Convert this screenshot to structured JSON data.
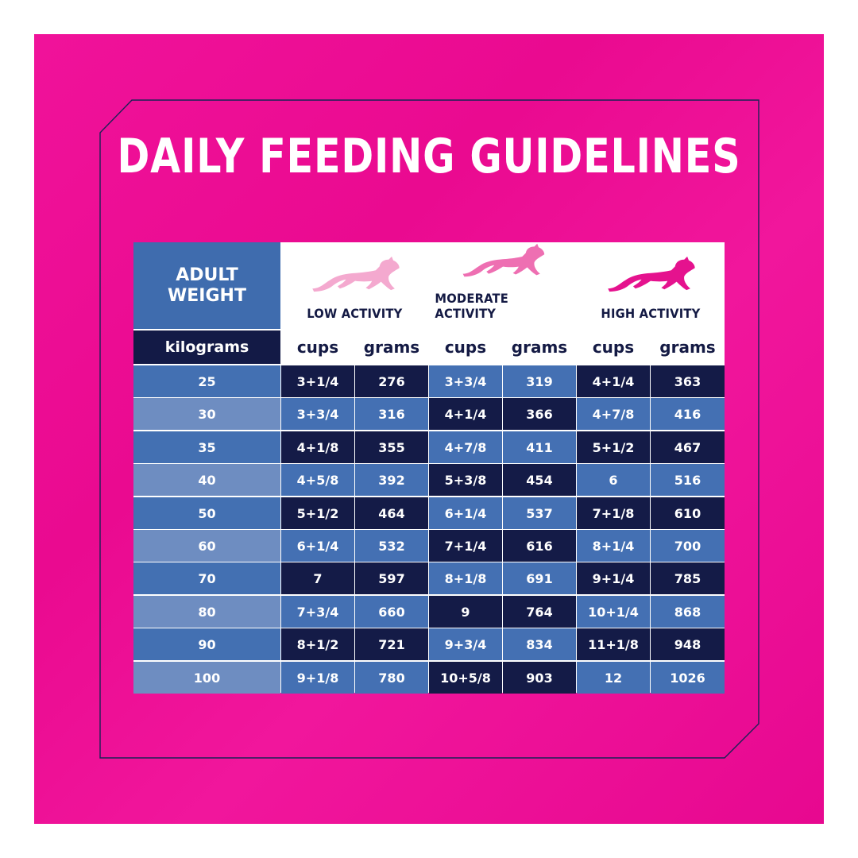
{
  "title": "DAILY FEEDING GUIDELINES",
  "colors": {
    "panel_pink": "#ec0c94",
    "table_navy": "#141b47",
    "table_blue": "#4470b3",
    "weight_blue": "#4370b2",
    "weight_light_blue": "#6e8dc1",
    "dog_low": "#f4a9cf",
    "dog_moderate": "#ee6fb2",
    "dog_high": "#e5128e"
  },
  "table": {
    "weight_header": [
      "ADULT",
      "WEIGHT"
    ],
    "weight_unit": "kilograms",
    "activities": [
      {
        "label": "LOW ACTIVITY",
        "icon": "running-dog-icon"
      },
      {
        "label": "MODERATE ACTIVITY",
        "icon": "running-dog-icon"
      },
      {
        "label": "HIGH ACTIVITY",
        "icon": "running-dog-icon"
      }
    ],
    "subunits": [
      "cups",
      "grams",
      "cups",
      "grams",
      "cups",
      "grams"
    ],
    "rows": [
      {
        "weight": "25",
        "values": [
          "3+1/4",
          "276",
          "3+3/4",
          "319",
          "4+1/4",
          "363"
        ]
      },
      {
        "weight": "30",
        "values": [
          "3+3/4",
          "316",
          "4+1/4",
          "366",
          "4+7/8",
          "416"
        ]
      },
      {
        "weight": "35",
        "values": [
          "4+1/8",
          "355",
          "4+7/8",
          "411",
          "5+1/2",
          "467"
        ]
      },
      {
        "weight": "40",
        "values": [
          "4+5/8",
          "392",
          "5+3/8",
          "454",
          "6",
          "516"
        ]
      },
      {
        "weight": "50",
        "values": [
          "5+1/2",
          "464",
          "6+1/4",
          "537",
          "7+1/8",
          "610"
        ]
      },
      {
        "weight": "60",
        "values": [
          "6+1/4",
          "532",
          "7+1/4",
          "616",
          "8+1/4",
          "700"
        ]
      },
      {
        "weight": "70",
        "values": [
          "7",
          "597",
          "8+1/8",
          "691",
          "9+1/4",
          "785"
        ]
      },
      {
        "weight": "80",
        "values": [
          "7+3/4",
          "660",
          "9",
          "764",
          "10+1/4",
          "868"
        ]
      },
      {
        "weight": "90",
        "values": [
          "8+1/2",
          "721",
          "9+3/4",
          "834",
          "11+1/8",
          "948"
        ]
      },
      {
        "weight": "100",
        "values": [
          "9+1/8",
          "780",
          "10+5/8",
          "903",
          "12",
          "1026"
        ]
      }
    ]
  }
}
